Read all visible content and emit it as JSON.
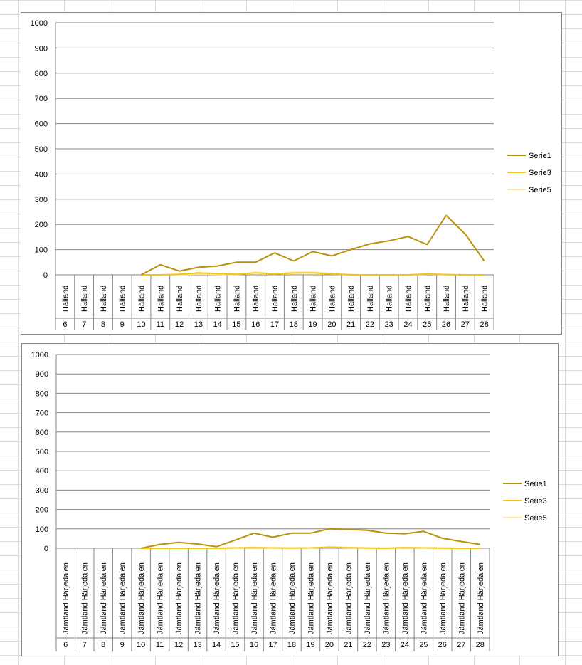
{
  "chart_data": [
    {
      "type": "line",
      "ylim": [
        0,
        1000
      ],
      "yticks": [
        0,
        100,
        200,
        300,
        400,
        500,
        600,
        700,
        800,
        900,
        1000
      ],
      "region_labels": [
        "Halland",
        "Halland",
        "Halland",
        "Halland",
        "Halland",
        "Halland",
        "Halland",
        "Halland",
        "Halland",
        "Halland",
        "Halland",
        "Halland",
        "Halland",
        "Halland",
        "Halland",
        "Halland",
        "Halland",
        "Halland",
        "Halland",
        "Halland",
        "Halland",
        "Halland",
        "Halland"
      ],
      "categories": [
        "6",
        "7",
        "8",
        "9",
        "10",
        "11",
        "12",
        "13",
        "14",
        "15",
        "16",
        "17",
        "18",
        "19",
        "20",
        "21",
        "22",
        "23",
        "24",
        "25",
        "26",
        "27",
        "28"
      ],
      "legend_position": "right",
      "grid": true,
      "series": [
        {
          "name": "Serie1",
          "color": "#b8910e",
          "values": [
            null,
            null,
            null,
            null,
            0,
            40,
            15,
            30,
            35,
            50,
            50,
            87,
            55,
            92,
            75,
            100,
            123,
            135,
            152,
            120,
            236,
            162,
            55
          ]
        },
        {
          "name": "Serie3",
          "color": "#f2c511",
          "values": [
            null,
            null,
            null,
            null,
            0,
            0,
            2,
            8,
            5,
            2,
            8,
            4,
            7,
            8,
            3,
            0,
            0,
            0,
            0,
            3,
            1,
            0,
            0
          ]
        },
        {
          "name": "Serie5",
          "color": "#f7e3a8",
          "values": [
            null,
            null,
            null,
            null,
            0,
            0,
            1,
            3,
            2,
            1,
            10,
            3,
            10,
            10,
            5,
            1,
            0,
            0,
            0,
            3,
            1,
            0,
            0
          ]
        }
      ]
    },
    {
      "type": "line",
      "ylim": [
        0,
        1000
      ],
      "yticks": [
        0,
        100,
        200,
        300,
        400,
        500,
        600,
        700,
        800,
        900,
        1000
      ],
      "region_labels": [
        "Jämtland Härjedalen",
        "Jämtland Härjedalen",
        "Jämtland Härjedalen",
        "Jämtland Härjedalen",
        "Jämtland Härjedalen",
        "Jämtland Härjedalen",
        "Jämtland Härjedalen",
        "Jämtland Härjedalen",
        "Jämtland Härjedalen",
        "Jämtland Härjedalen",
        "Jämtland Härjedalen",
        "Jämtland Härjedalen",
        "Jämtland Härjedalen",
        "Jämtland Härjedalen",
        "Jämtland Härjedalen",
        "Jämtland Härjedalen",
        "Jämtland Härjedalen",
        "Jämtland Härjedalen",
        "Jämtland Härjedalen",
        "Jämtland Härjedalen",
        "Jämtland Härjedalen",
        "Jämtland Härjedalen",
        "Jämtland Härjedalen"
      ],
      "categories": [
        "6",
        "7",
        "8",
        "9",
        "10",
        "11",
        "12",
        "13",
        "14",
        "15",
        "16",
        "17",
        "18",
        "19",
        "20",
        "21",
        "22",
        "23",
        "24",
        "25",
        "26",
        "27",
        "28"
      ],
      "legend_position": "right",
      "grid": true,
      "series": [
        {
          "name": "Serie1",
          "color": "#b8910e",
          "values": [
            null,
            null,
            null,
            null,
            0,
            20,
            30,
            22,
            8,
            42,
            78,
            57,
            78,
            78,
            100,
            97,
            93,
            78,
            75,
            87,
            52,
            35,
            20
          ]
        },
        {
          "name": "Serie3",
          "color": "#f2c511",
          "values": [
            null,
            null,
            null,
            null,
            0,
            0,
            0,
            0,
            0,
            2,
            3,
            2,
            1,
            2,
            5,
            3,
            1,
            0,
            3,
            2,
            1,
            0,
            0
          ]
        },
        {
          "name": "Serie5",
          "color": "#f7e3a8",
          "values": [
            null,
            null,
            null,
            null,
            0,
            0,
            0,
            0,
            0,
            2,
            5,
            2,
            2,
            2,
            7,
            4,
            2,
            1,
            4,
            2,
            1,
            0,
            0
          ]
        }
      ]
    }
  ]
}
